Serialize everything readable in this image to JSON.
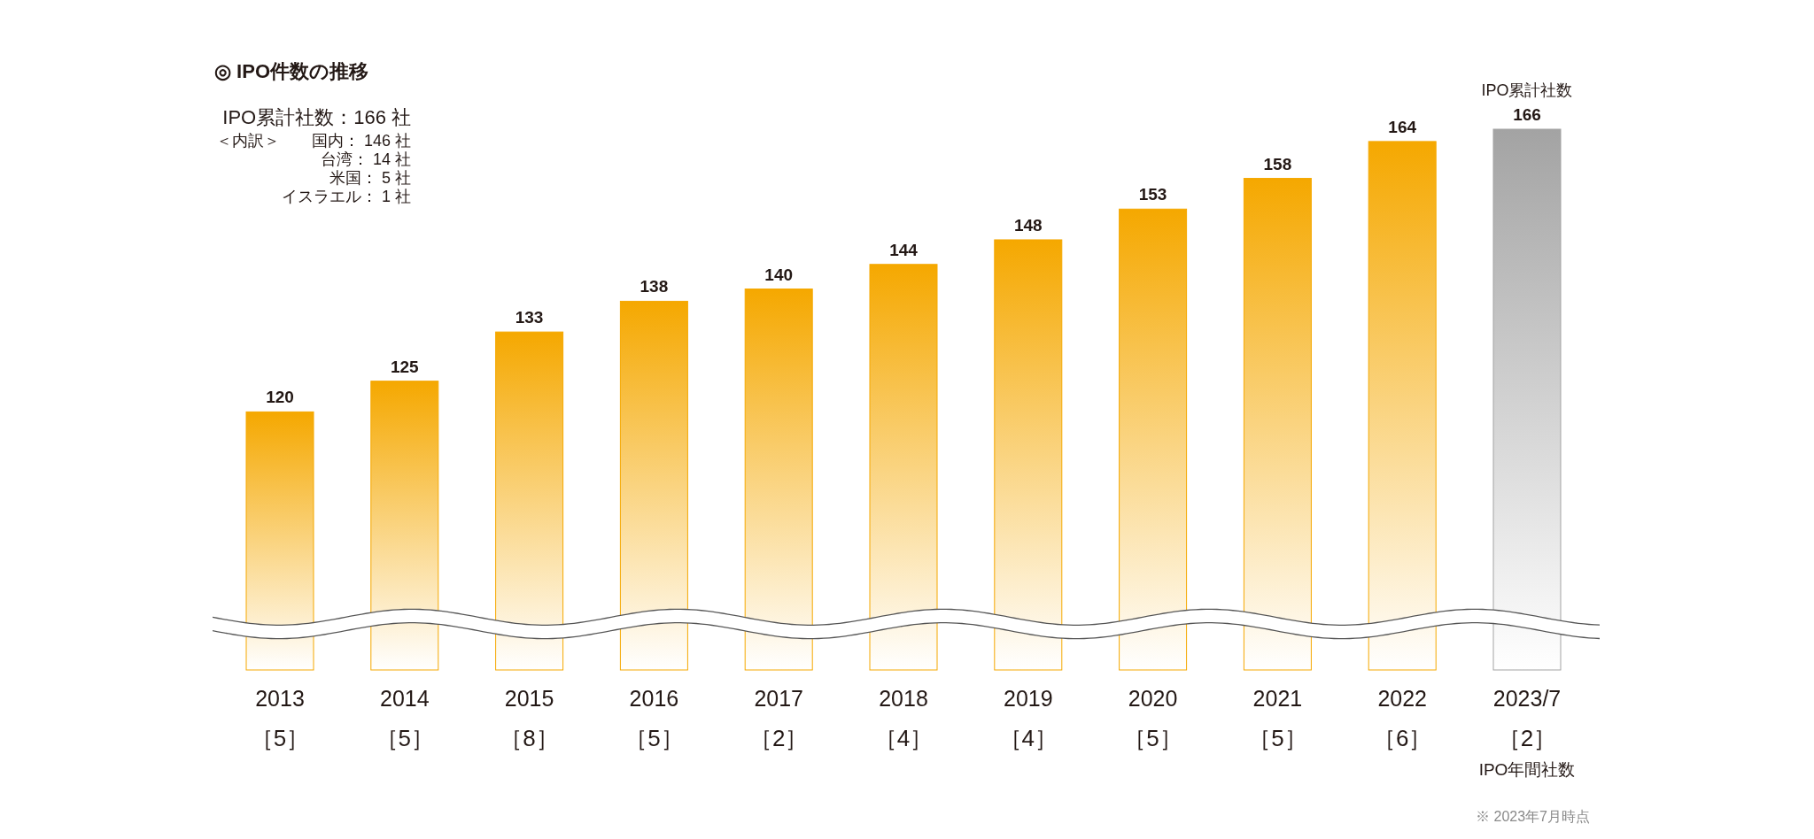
{
  "chart_data": {
    "type": "bar",
    "title": "◎ IPO件数の推移",
    "categories": [
      "2013",
      "2014",
      "2015",
      "2016",
      "2017",
      "2018",
      "2019",
      "2020",
      "2021",
      "2022",
      "2023/7"
    ],
    "values": [
      120,
      125,
      133,
      138,
      140,
      144,
      148,
      153,
      158,
      164,
      166
    ],
    "colors": [
      "#f5a800",
      "#f5a800",
      "#f5a800",
      "#f5a800",
      "#f5a800",
      "#f5a800",
      "#f5a800",
      "#f5a800",
      "#f5a800",
      "#f5a800",
      "#a3a3a3"
    ],
    "ylim": [
      78,
      166
    ],
    "data_labels": true,
    "annotations": [
      "IPO累計社数：166 社",
      "＜内訳＞",
      "国内：  146 社",
      "台湾：    14 社",
      "米国：      5 社",
      "イスラエル：      1 社",
      "［5］",
      "［5］",
      "［8］",
      "［5］",
      "［2］",
      "［4］",
      "［4］",
      "［5］",
      "［5］",
      "［6］",
      "［2］",
      "IPO累計社数",
      "IPO年間社数",
      "※ 2023年7月時点"
    ]
  }
}
